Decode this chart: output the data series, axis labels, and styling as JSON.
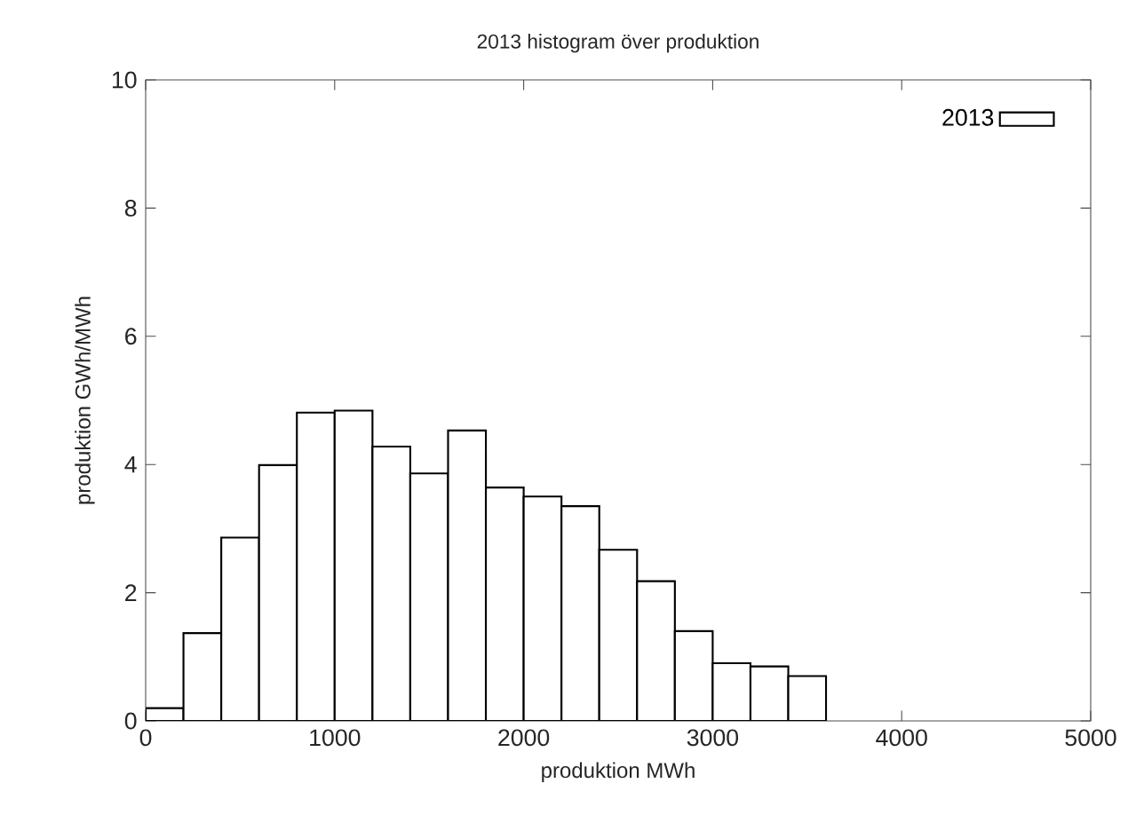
{
  "chart_data": {
    "type": "histogram",
    "title": "2013 histogram över produktion",
    "xlabel": "produktion MWh",
    "ylabel": "produktion GWh/MWh",
    "bins": [
      0,
      200,
      400,
      600,
      800,
      1000,
      1200,
      1400,
      1600,
      1800,
      2000,
      2200,
      2400,
      2600,
      2800,
      3000,
      3200,
      3400,
      3600
    ],
    "series": [
      {
        "name": "2013",
        "color": "#000000",
        "values": [
          0.2,
          1.37,
          2.86,
          3.99,
          4.81,
          4.84,
          4.28,
          3.86,
          4.53,
          3.64,
          3.5,
          3.35,
          2.67,
          2.18,
          1.4,
          0.9,
          0.85,
          0.7
        ]
      }
    ],
    "xlim": [
      0,
      5000
    ],
    "ylim": [
      0,
      10
    ],
    "xticks": [
      0,
      1000,
      2000,
      3000,
      4000,
      5000
    ],
    "yticks": [
      0,
      2,
      4,
      6,
      8,
      10
    ],
    "legend": "top right"
  }
}
